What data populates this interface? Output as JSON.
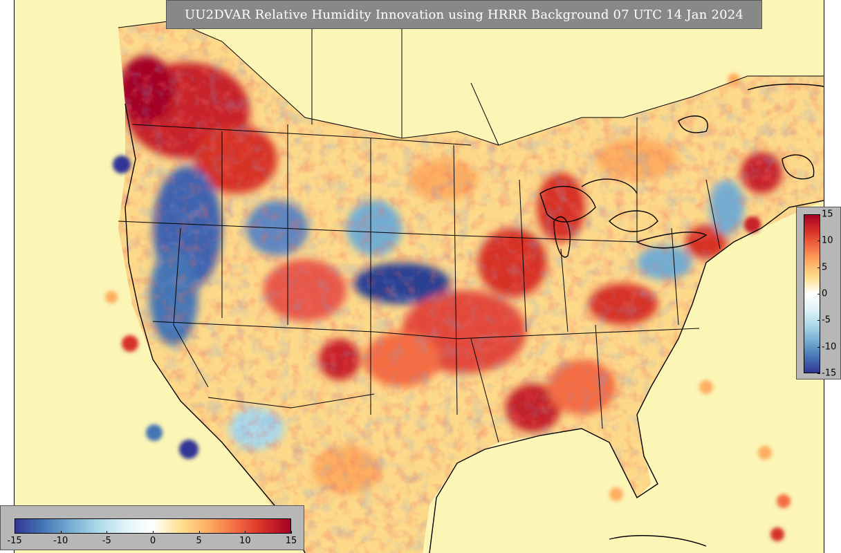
{
  "title": "UU2DVAR Relative Humidity Innovation using HRRR Background 07 UTC 14 Jan 2024",
  "colorbar": {
    "min": -15,
    "max": 15,
    "colors": [
      "#313695",
      "#4575b4",
      "#74add1",
      "#abd9e9",
      "#e0f3f8",
      "#ffffff",
      "#fee090",
      "#fdae61",
      "#f46d43",
      "#d73027",
      "#a50026"
    ],
    "vertical_ticks": [
      "15",
      "10",
      "5",
      "0",
      "-5",
      "-10",
      "-15"
    ],
    "horizontal_ticks": [
      "-15",
      "-10",
      "-5",
      "0",
      "5",
      "10",
      "15"
    ],
    "tick_values": [
      -15,
      -10,
      -5,
      0,
      5,
      10,
      15
    ]
  },
  "map": {
    "ocean_color": "#fbf5b6",
    "border_color": "#000000"
  }
}
